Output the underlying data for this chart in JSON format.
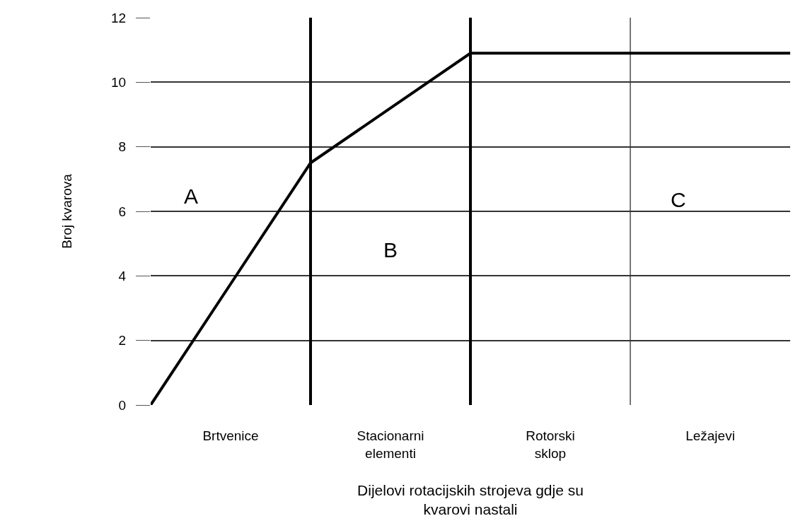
{
  "chart_data": {
    "type": "line",
    "xlabel": "Dijelovi rotacijskih strojeva gdje su\nkvarovi nastali",
    "ylabel": "Broj kvarova",
    "categories": [
      null,
      "Brtvenice",
      null,
      "Stacionarni\nelementi",
      null,
      "Rotorski\nsklop",
      null,
      "Ležajevi",
      null
    ],
    "series": [
      {
        "color": "#000000",
        "values": [
          0,
          3.75,
          7.5,
          9.2,
          10.9,
          10.9,
          10.9,
          10.9,
          10.9
        ]
      }
    ],
    "ylim": [
      0,
      12
    ],
    "yticks": [
      0,
      2,
      4,
      6,
      8,
      10,
      12
    ],
    "grid": true,
    "legend": false,
    "marker": "none",
    "line_style": "solid",
    "annotations": [
      "A",
      "B",
      "C"
    ]
  }
}
